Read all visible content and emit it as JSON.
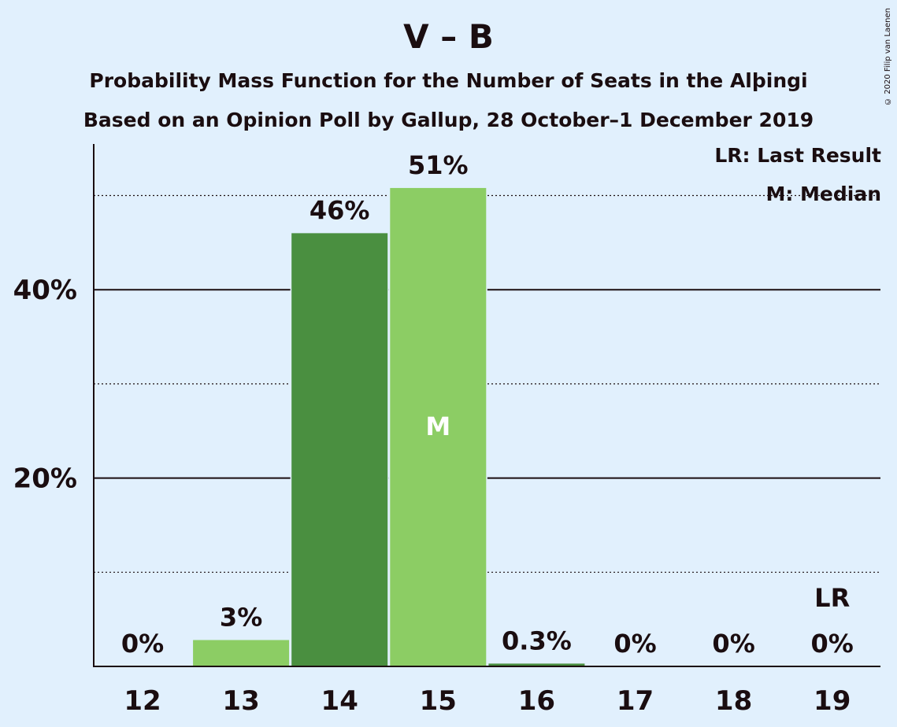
{
  "title": "V – B",
  "subtitle_1": "Probability Mass Function for the Number of Seats in the Alþingi",
  "subtitle_2": "Based on an Opinion Poll by Gallup, 28 October–1 December 2019",
  "copyright": "© 2020 Filip van Laenen",
  "legend": {
    "last_result": "LR: Last Result",
    "median": "M: Median"
  },
  "colors": {
    "background": "#e1f0fd",
    "bar_light": "#8ccd64",
    "bar_dark": "#4a8f40",
    "text": "#1a0d10"
  },
  "chart_data": {
    "type": "bar",
    "categories": [
      "12",
      "13",
      "14",
      "15",
      "16",
      "17",
      "18",
      "19"
    ],
    "values": [
      0,
      2.8,
      46,
      50.8,
      0.3,
      0,
      0,
      0
    ],
    "data_labels": [
      "0%",
      "3%",
      "46%",
      "51%",
      "0.3%",
      "0%",
      "0%",
      "0%"
    ],
    "bar_shades": [
      "light",
      "light",
      "dark",
      "light",
      "dark",
      "light",
      "light",
      "light"
    ],
    "median_category": "15",
    "median_marker": "M",
    "last_result_category": "19",
    "last_result_marker": "LR",
    "y_ticks": [
      20,
      40
    ],
    "y_tick_labels": [
      "20%",
      "40%"
    ],
    "minor_gridlines": [
      10,
      30,
      50
    ],
    "ylim": [
      0,
      55
    ],
    "xlabel": "",
    "ylabel": "",
    "grid": true,
    "legend_position": "top-right"
  }
}
